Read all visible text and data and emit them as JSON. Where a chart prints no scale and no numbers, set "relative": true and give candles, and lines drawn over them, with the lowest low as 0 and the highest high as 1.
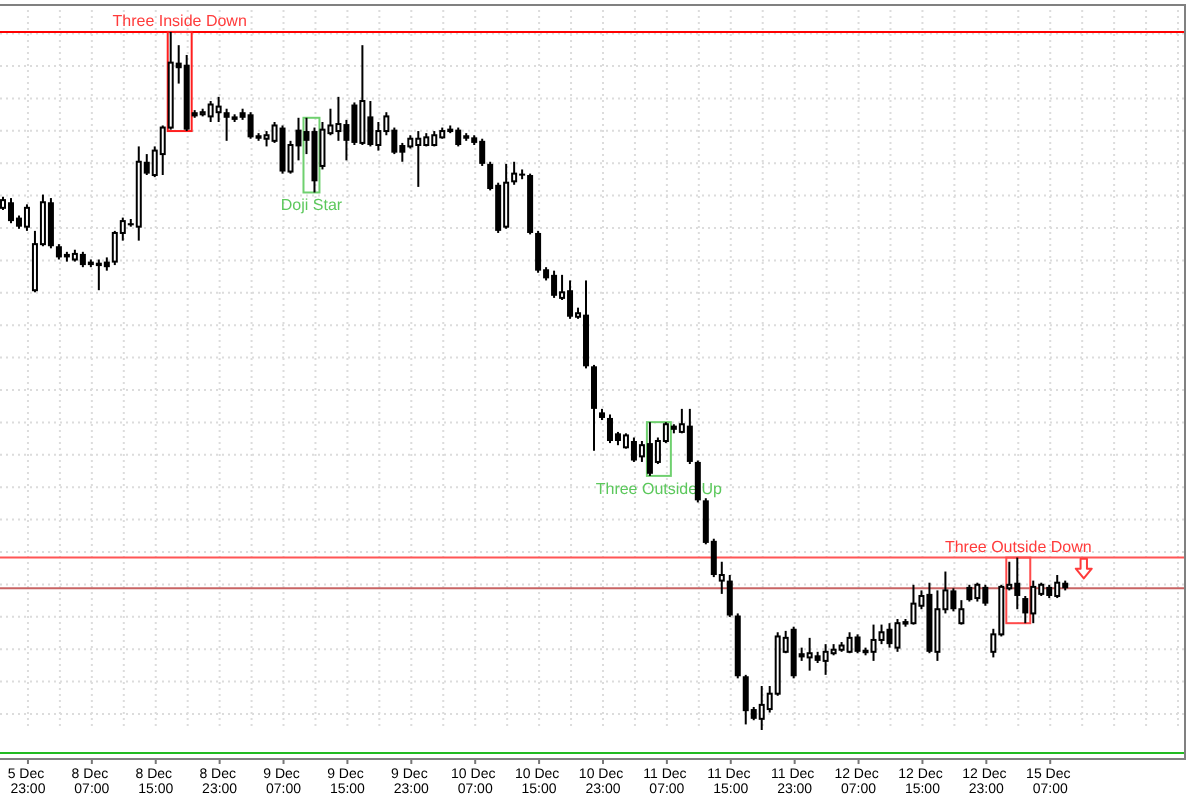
{
  "chart_data": {
    "type": "candlestick",
    "relative": true,
    "grid": true,
    "categories": [
      null,
      null,
      null,
      "5 Dec 23:00",
      null,
      null,
      null,
      null,
      null,
      null,
      null,
      "8 Dec 07:00",
      null,
      null,
      null,
      null,
      null,
      null,
      null,
      "8 Dec 15:00",
      null,
      null,
      null,
      null,
      null,
      null,
      null,
      "8 Dec 23:00",
      null,
      null,
      null,
      null,
      null,
      null,
      null,
      "9 Dec 07:00",
      null,
      null,
      null,
      null,
      null,
      null,
      null,
      "9 Dec 15:00",
      null,
      null,
      null,
      null,
      null,
      null,
      null,
      "9 Dec 23:00",
      null,
      null,
      null,
      null,
      null,
      null,
      null,
      "10 Dec 07:00",
      null,
      null,
      null,
      null,
      null,
      null,
      null,
      "10 Dec 15:00",
      null,
      null,
      null,
      null,
      null,
      null,
      null,
      "10 Dec 23:00",
      null,
      null,
      null,
      null,
      null,
      null,
      null,
      "11 Dec 07:00",
      null,
      null,
      null,
      null,
      null,
      null,
      null,
      "11 Dec 15:00",
      null,
      null,
      null,
      null,
      null,
      null,
      null,
      "11 Dec 23:00",
      null,
      null,
      null,
      null,
      null,
      null,
      null,
      "12 Dec 07:00",
      null,
      null,
      null,
      null,
      null,
      null,
      null,
      "12 Dec 15:00",
      null,
      null,
      null,
      null,
      null,
      null,
      null,
      "12 Dec 23:00",
      null,
      null,
      null,
      null,
      null,
      null,
      null,
      "15 Dec 07:00",
      null,
      null
    ],
    "ohlc": [
      [
        0.748,
        0.764,
        0.745,
        0.759
      ],
      [
        0.756,
        0.762,
        0.726,
        0.729
      ],
      [
        0.734,
        0.737,
        0.718,
        0.721
      ],
      [
        0.721,
        0.753,
        0.715,
        0.748
      ],
      [
        0.63,
        0.715,
        0.627,
        0.696
      ],
      [
        0.696,
        0.767,
        0.693,
        0.756
      ],
      [
        0.756,
        0.762,
        0.69,
        0.693
      ],
      [
        0.693,
        0.696,
        0.674,
        0.677
      ],
      [
        0.682,
        0.685,
        0.671,
        0.677
      ],
      [
        0.674,
        0.688,
        0.671,
        0.682
      ],
      [
        0.682,
        0.685,
        0.663,
        0.666
      ],
      [
        0.671,
        0.674,
        0.663,
        0.666
      ],
      [
        0.666,
        0.674,
        0.63,
        0.668
      ],
      [
        0.671,
        0.677,
        0.658,
        0.663
      ],
      [
        0.671,
        0.715,
        0.666,
        0.712
      ],
      [
        0.712,
        0.734,
        0.701,
        0.729
      ],
      [
        0.726,
        0.732,
        0.721,
        0.723
      ],
      [
        0.721,
        0.836,
        0.701,
        0.814
      ],
      [
        0.814,
        0.825,
        0.795,
        0.797
      ],
      [
        0.795,
        0.836,
        0.792,
        0.83
      ],
      [
        0.825,
        0.866,
        0.795,
        0.863
      ],
      [
        0.863,
        1.0,
        0.86,
        0.956
      ],
      [
        0.956,
        0.981,
        0.926,
        0.948
      ],
      [
        0.953,
        0.967,
        0.858,
        0.86
      ],
      [
        0.885,
        0.888,
        0.877,
        0.879
      ],
      [
        0.882,
        0.89,
        0.879,
        0.885
      ],
      [
        0.879,
        0.901,
        0.871,
        0.896
      ],
      [
        0.885,
        0.907,
        0.871,
        0.893
      ],
      [
        0.885,
        0.89,
        0.844,
        0.877
      ],
      [
        0.879,
        0.882,
        0.871,
        0.874
      ],
      [
        0.885,
        0.89,
        0.874,
        0.877
      ],
      [
        0.882,
        0.885,
        0.847,
        0.849
      ],
      [
        0.852,
        0.855,
        0.844,
        0.847
      ],
      [
        0.847,
        0.858,
        0.836,
        0.852
      ],
      [
        0.844,
        0.871,
        0.841,
        0.866
      ],
      [
        0.863,
        0.866,
        0.797,
        0.8
      ],
      [
        0.8,
        0.844,
        0.797,
        0.838
      ],
      [
        0.86,
        0.877,
        0.816,
        0.836
      ],
      [
        0.858,
        0.877,
        0.825,
        0.844
      ],
      [
        0.858,
        0.863,
        0.77,
        0.786
      ],
      [
        0.808,
        0.871,
        0.803,
        0.86
      ],
      [
        0.855,
        0.89,
        0.852,
        0.866
      ],
      [
        0.858,
        0.907,
        0.844,
        0.868
      ],
      [
        0.868,
        0.874,
        0.816,
        0.844
      ],
      [
        0.896,
        0.899,
        0.838,
        0.841
      ],
      [
        0.841,
        0.981,
        0.838,
        0.901
      ],
      [
        0.879,
        0.901,
        0.836,
        0.838
      ],
      [
        0.838,
        0.871,
        0.83,
        0.858
      ],
      [
        0.858,
        0.885,
        0.852,
        0.879
      ],
      [
        0.86,
        0.863,
        0.825,
        0.827
      ],
      [
        0.838,
        0.841,
        0.814,
        0.827
      ],
      [
        0.836,
        0.852,
        0.833,
        0.847
      ],
      [
        0.838,
        0.858,
        0.778,
        0.847
      ],
      [
        0.838,
        0.855,
        0.836,
        0.849
      ],
      [
        0.838,
        0.858,
        0.836,
        0.852
      ],
      [
        0.849,
        0.863,
        0.847,
        0.858
      ],
      [
        0.858,
        0.866,
        0.855,
        0.86
      ],
      [
        0.86,
        0.863,
        0.836,
        0.838
      ],
      [
        0.852,
        0.855,
        0.844,
        0.847
      ],
      [
        0.849,
        0.852,
        0.838,
        0.841
      ],
      [
        0.844,
        0.847,
        0.808,
        0.811
      ],
      [
        0.811,
        0.814,
        0.773,
        0.775
      ],
      [
        0.781,
        0.784,
        0.712,
        0.715
      ],
      [
        0.721,
        0.811,
        0.718,
        0.784
      ],
      [
        0.786,
        0.814,
        0.781,
        0.797
      ],
      [
        0.797,
        0.803,
        0.789,
        0.795
      ],
      [
        0.795,
        0.797,
        0.71,
        0.712
      ],
      [
        0.712,
        0.715,
        0.655,
        0.658
      ],
      [
        0.66,
        0.663,
        0.644,
        0.647
      ],
      [
        0.652,
        0.658,
        0.619,
        0.622
      ],
      [
        0.619,
        0.652,
        0.616,
        0.627
      ],
      [
        0.63,
        0.644,
        0.589,
        0.592
      ],
      [
        0.592,
        0.605,
        0.589,
        0.597
      ],
      [
        0.595,
        0.644,
        0.518,
        0.521
      ],
      [
        0.521,
        0.523,
        0.4,
        0.46
      ],
      [
        0.455,
        0.46,
        0.444,
        0.447
      ],
      [
        0.447,
        0.452,
        0.411,
        0.414
      ],
      [
        0.425,
        0.427,
        0.408,
        0.414
      ],
      [
        0.405,
        0.425,
        0.403,
        0.422
      ],
      [
        0.414,
        0.419,
        0.384,
        0.386
      ],
      [
        0.392,
        0.414,
        0.384,
        0.408
      ],
      [
        0.411,
        0.441,
        0.364,
        0.367
      ],
      [
        0.384,
        0.419,
        0.381,
        0.414
      ],
      [
        0.414,
        0.441,
        0.411,
        0.438
      ],
      [
        0.436,
        0.438,
        0.425,
        0.43
      ],
      [
        0.427,
        0.46,
        0.425,
        0.438
      ],
      [
        0.436,
        0.46,
        0.381,
        0.384
      ],
      [
        0.384,
        0.386,
        0.326,
        0.329
      ],
      [
        0.329,
        0.332,
        0.266,
        0.268
      ],
      [
        0.271,
        0.274,
        0.219,
        0.222
      ],
      [
        0.214,
        0.241,
        0.195,
        0.222
      ],
      [
        0.214,
        0.222,
        0.162,
        0.164
      ],
      [
        0.164,
        0.167,
        0.074,
        0.077
      ],
      [
        0.077,
        0.079,
        0.008,
        0.027
      ],
      [
        0.03,
        0.033,
        0.014,
        0.016
      ],
      [
        0.016,
        0.063,
        0,
        0.036
      ],
      [
        0.03,
        0.063,
        0.025,
        0.052
      ],
      [
        0.052,
        0.14,
        0.049,
        0.134
      ],
      [
        0.112,
        0.142,
        0.11,
        0.132
      ],
      [
        0.145,
        0.148,
        0.074,
        0.077
      ],
      [
        0.11,
        0.118,
        0.099,
        0.104
      ],
      [
        0.104,
        0.132,
        0.085,
        0.11
      ],
      [
        0.107,
        0.112,
        0.096,
        0.099
      ],
      [
        0.099,
        0.123,
        0.079,
        0.112
      ],
      [
        0.11,
        0.123,
        0.107,
        0.115
      ],
      [
        0.115,
        0.126,
        0.112,
        0.121
      ],
      [
        0.112,
        0.14,
        0.11,
        0.132
      ],
      [
        0.134,
        0.137,
        0.11,
        0.112
      ],
      [
        0.115,
        0.118,
        0.107,
        0.11
      ],
      [
        0.112,
        0.151,
        0.099,
        0.129
      ],
      [
        0.129,
        0.151,
        0.123,
        0.14
      ],
      [
        0.145,
        0.153,
        0.118,
        0.123
      ],
      [
        0.118,
        0.159,
        0.112,
        0.153
      ],
      [
        0.156,
        0.159,
        0.148,
        0.151
      ],
      [
        0.153,
        0.208,
        0.151,
        0.181
      ],
      [
        0.178,
        0.2,
        0.173,
        0.192
      ],
      [
        0.195,
        0.211,
        0.11,
        0.112
      ],
      [
        0.112,
        0.2,
        0.099,
        0.173
      ],
      [
        0.173,
        0.227,
        0.167,
        0.2
      ],
      [
        0.2,
        0.203,
        0.17,
        0.173
      ],
      [
        0.153,
        0.186,
        0.151,
        0.173
      ],
      [
        0.205,
        0.208,
        0.184,
        0.186
      ],
      [
        0.189,
        0.211,
        0.184,
        0.208
      ],
      [
        0.205,
        0.208,
        0.178,
        0.181
      ],
      [
        0.112,
        0.145,
        0.104,
        0.137
      ],
      [
        0.137,
        0.208,
        0.134,
        0.205
      ],
      [
        0.203,
        0.241,
        0.2,
        0.208
      ],
      [
        0.211,
        0.247,
        0.173,
        0.192
      ],
      [
        0.189,
        0.192,
        0.153,
        0.167
      ],
      [
        0.167,
        0.214,
        0.153,
        0.205
      ],
      [
        0.195,
        0.211,
        0.192,
        0.208
      ],
      [
        0.205,
        0.208,
        0.189,
        0.192
      ],
      [
        0.192,
        0.222,
        0.189,
        0.211
      ],
      [
        0.211,
        0.214,
        0.2,
        0.203
      ]
    ],
    "ref_lines": [
      {
        "axis": "y",
        "value": 1.0,
        "color": "#ff0000"
      },
      {
        "axis": "y",
        "value": 0.247,
        "color": "#ff5555"
      },
      {
        "axis": "y",
        "value": 0.203,
        "color": "#c86464"
      },
      {
        "axis": "y",
        "value": -0.033,
        "color": "#22bb22"
      }
    ],
    "annotations": [
      "Three Inside Down",
      "Doji Star",
      "Three Outside Up",
      "Three Outside Down"
    ]
  }
}
